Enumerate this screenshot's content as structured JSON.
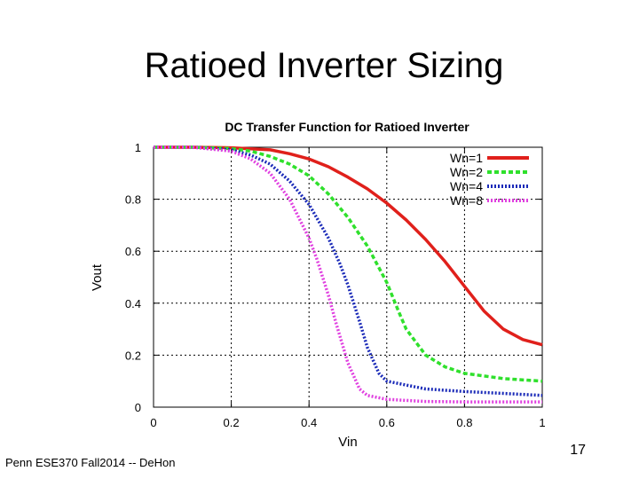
{
  "slide": {
    "title": "Ratioed Inverter Sizing",
    "footer": "Penn ESE370 Fall2014 -- DeHon",
    "page_number": "17"
  },
  "chart_data": {
    "type": "line",
    "title": "DC Transfer Function for Ratioed Inverter",
    "xlabel": "Vin",
    "ylabel": "Vout",
    "xlim": [
      0,
      1
    ],
    "ylim": [
      0,
      1
    ],
    "xticks": [
      0,
      0.2,
      0.4,
      0.6,
      0.8,
      1
    ],
    "yticks": [
      0,
      0.2,
      0.4,
      0.6,
      0.8,
      1
    ],
    "xtick_labels": [
      "0",
      "0.2",
      "0.4",
      "0.6",
      "0.8",
      "1"
    ],
    "ytick_labels": [
      "0",
      "0.2",
      "0.4",
      "0.6",
      "0.8",
      "1"
    ],
    "grid": true,
    "legend": "top-right",
    "series": [
      {
        "name": "Wn=1",
        "color": "#e0201b",
        "dash": "solid",
        "x": [
          0,
          0.1,
          0.2,
          0.3,
          0.35,
          0.4,
          0.45,
          0.5,
          0.55,
          0.6,
          0.65,
          0.7,
          0.75,
          0.8,
          0.85,
          0.9,
          0.95,
          1.0
        ],
        "y": [
          1.0,
          1.0,
          0.998,
          0.99,
          0.975,
          0.955,
          0.925,
          0.885,
          0.84,
          0.785,
          0.72,
          0.645,
          0.56,
          0.465,
          0.37,
          0.3,
          0.26,
          0.24
        ]
      },
      {
        "name": "Wn=2",
        "color": "#2fe02c",
        "dash": "dashed",
        "x": [
          0,
          0.1,
          0.2,
          0.25,
          0.3,
          0.35,
          0.4,
          0.45,
          0.5,
          0.55,
          0.6,
          0.63,
          0.65,
          0.7,
          0.75,
          0.8,
          0.9,
          1.0
        ],
        "y": [
          1.0,
          1.0,
          0.995,
          0.985,
          0.965,
          0.935,
          0.89,
          0.82,
          0.73,
          0.62,
          0.48,
          0.37,
          0.3,
          0.2,
          0.155,
          0.13,
          0.11,
          0.1
        ]
      },
      {
        "name": "Wn=4",
        "color": "#1a2ab8",
        "dash": "dotted",
        "x": [
          0,
          0.1,
          0.2,
          0.25,
          0.3,
          0.35,
          0.4,
          0.45,
          0.48,
          0.5,
          0.53,
          0.55,
          0.58,
          0.6,
          0.7,
          0.8,
          0.9,
          1.0
        ],
        "y": [
          1.0,
          1.0,
          0.99,
          0.97,
          0.935,
          0.87,
          0.78,
          0.65,
          0.55,
          0.47,
          0.33,
          0.23,
          0.13,
          0.1,
          0.07,
          0.06,
          0.053,
          0.045
        ]
      },
      {
        "name": "Wn=8",
        "color": "#e040e0",
        "dash": "dotted",
        "x": [
          0,
          0.1,
          0.2,
          0.25,
          0.3,
          0.35,
          0.4,
          0.42,
          0.45,
          0.47,
          0.5,
          0.53,
          0.55,
          0.6,
          0.7,
          0.8,
          0.9,
          1.0
        ],
        "y": [
          1.0,
          1.0,
          0.985,
          0.955,
          0.9,
          0.8,
          0.65,
          0.57,
          0.43,
          0.32,
          0.17,
          0.07,
          0.045,
          0.03,
          0.022,
          0.02,
          0.02,
          0.02
        ]
      }
    ]
  }
}
